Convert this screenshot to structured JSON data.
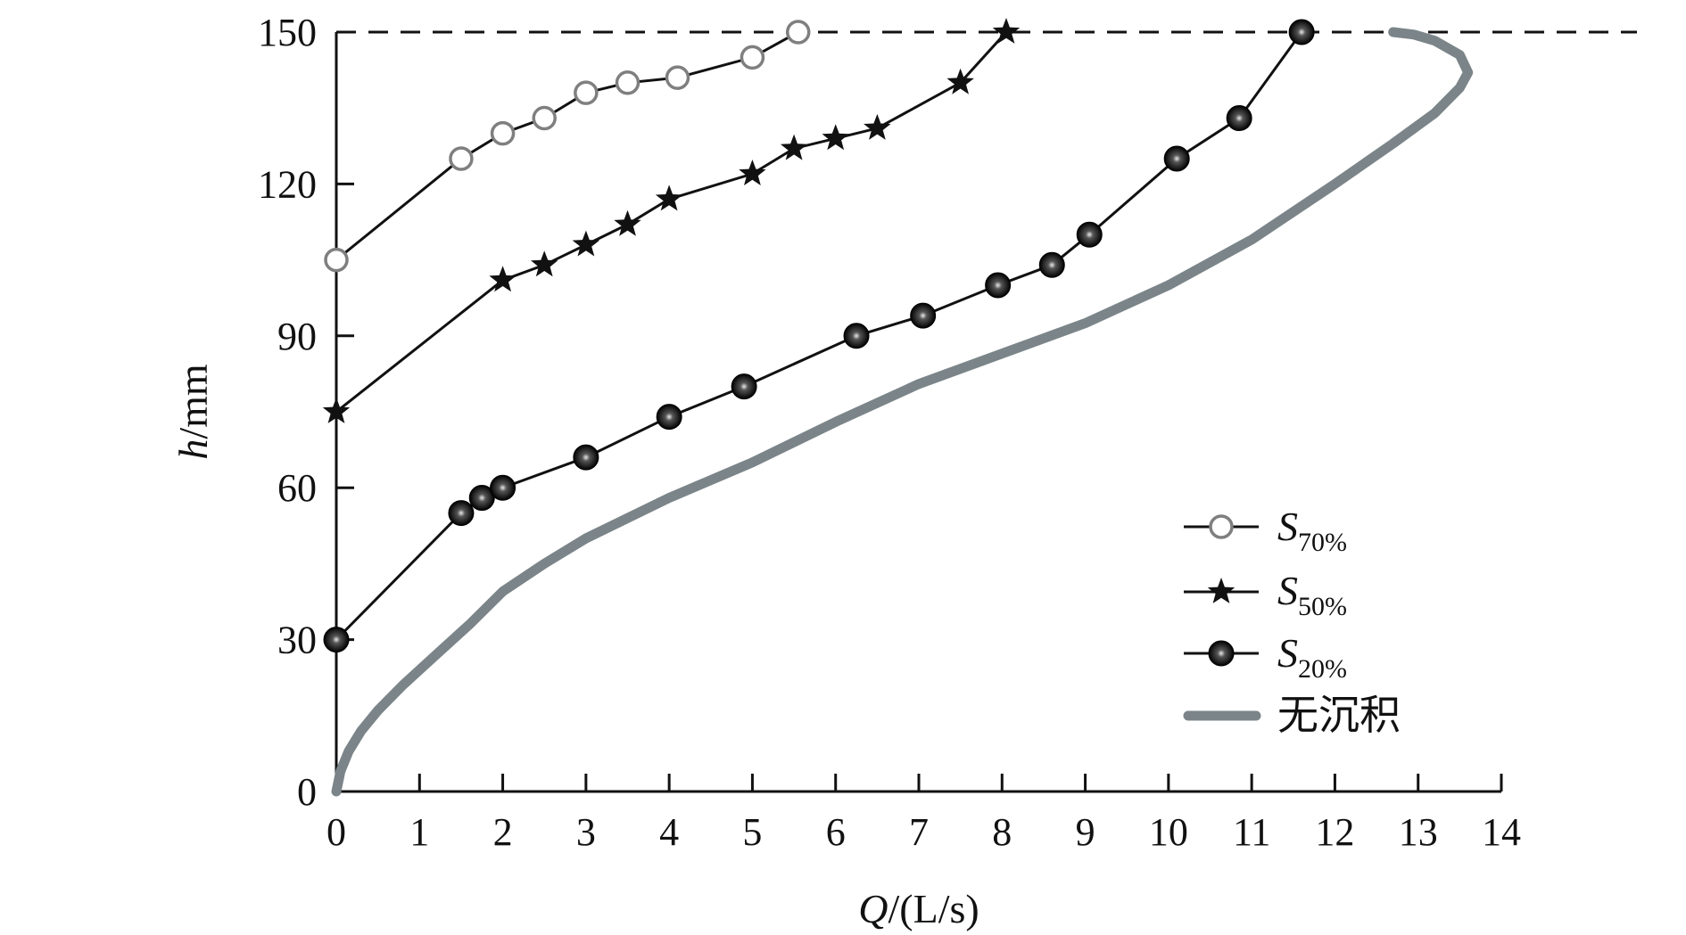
{
  "chart_data": {
    "type": "line",
    "title": "",
    "xlabel": {
      "italic": "Q",
      "rest": "/(L/s)"
    },
    "ylabel": {
      "italic": "h",
      "rest": "/mm"
    },
    "xlim": [
      0,
      14
    ],
    "ylim": [
      0,
      150
    ],
    "xticks": [
      "0",
      "1",
      "2",
      "3",
      "4",
      "5",
      "6",
      "7",
      "8",
      "9",
      "10",
      "11",
      "12",
      "13",
      "14"
    ],
    "yticks": [
      "0",
      "30",
      "60",
      "90",
      "120",
      "150"
    ],
    "reference_line": {
      "y": 150,
      "style": "dashed"
    },
    "legend_position": "bottom-right",
    "series": [
      {
        "name": "S70%",
        "label_main": "S",
        "label_sub": "70%",
        "marker": "open-circle",
        "color": "#7f7f7f",
        "points": [
          [
            0,
            105
          ],
          [
            1.5,
            125
          ],
          [
            2,
            130
          ],
          [
            2.5,
            133
          ],
          [
            3,
            138
          ],
          [
            3.5,
            140
          ],
          [
            4.1,
            141
          ],
          [
            5,
            145
          ],
          [
            5.55,
            150
          ]
        ]
      },
      {
        "name": "S50%",
        "label_main": "S",
        "label_sub": "50%",
        "marker": "star",
        "color": "#111111",
        "points": [
          [
            0,
            75
          ],
          [
            2,
            101
          ],
          [
            2.5,
            104
          ],
          [
            3,
            108
          ],
          [
            3.5,
            112
          ],
          [
            4,
            117
          ],
          [
            5,
            122
          ],
          [
            5.5,
            127
          ],
          [
            6,
            129
          ],
          [
            6.5,
            131
          ],
          [
            7.5,
            140
          ],
          [
            8.05,
            150
          ]
        ]
      },
      {
        "name": "S20%",
        "label_main": "S",
        "label_sub": "20%",
        "marker": "ball",
        "color": "#111111",
        "points": [
          [
            0,
            30
          ],
          [
            1.5,
            55
          ],
          [
            1.75,
            58
          ],
          [
            2,
            60
          ],
          [
            3,
            66
          ],
          [
            4,
            74
          ],
          [
            4.9,
            80
          ],
          [
            6.25,
            90
          ],
          [
            7.05,
            94
          ],
          [
            7.95,
            100
          ],
          [
            8.6,
            104
          ],
          [
            9.05,
            110
          ],
          [
            10.1,
            125
          ],
          [
            10.85,
            133
          ],
          [
            11.6,
            150
          ]
        ]
      },
      {
        "name": "无沉积",
        "marker": "none",
        "color": "#7b8589",
        "points": [
          [
            0,
            0
          ],
          [
            0.05,
            4
          ],
          [
            0.15,
            8
          ],
          [
            0.3,
            12
          ],
          [
            0.5,
            16
          ],
          [
            0.8,
            21
          ],
          [
            1.2,
            27
          ],
          [
            1.6,
            33
          ],
          [
            2,
            39.5
          ],
          [
            2.5,
            45
          ],
          [
            3,
            50
          ],
          [
            4,
            58
          ],
          [
            5,
            65
          ],
          [
            6,
            73
          ],
          [
            7,
            80.5
          ],
          [
            8,
            86.5
          ],
          [
            9,
            92.5
          ],
          [
            10,
            100
          ],
          [
            11,
            109
          ],
          [
            12,
            120
          ],
          [
            12.7,
            128
          ],
          [
            13.2,
            134
          ],
          [
            13.5,
            139
          ],
          [
            13.6,
            142
          ],
          [
            13.5,
            145.5
          ],
          [
            13.2,
            148.3
          ],
          [
            12.95,
            149.5
          ],
          [
            12.7,
            150
          ]
        ]
      }
    ]
  }
}
